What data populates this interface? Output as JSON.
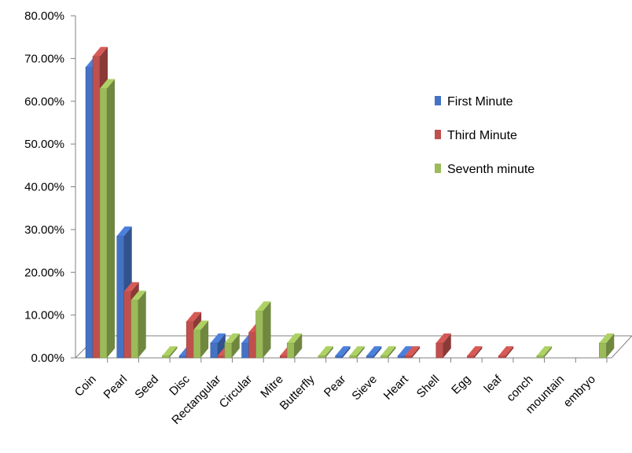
{
  "chart_data": {
    "type": "bar",
    "title": "",
    "xlabel": "",
    "ylabel": "",
    "ylim": [
      0,
      80
    ],
    "yticks": [
      "0.00%",
      "10.00%",
      "20.00%",
      "30.00%",
      "40.00%",
      "50.00%",
      "60.00%",
      "70.00%",
      "80.00%"
    ],
    "grid": false,
    "legend_position": "right",
    "categories": [
      "Coin",
      "Pearl",
      "Seed",
      "Disc",
      "Rectangular",
      "Circular",
      "Mitre",
      "Butterfly",
      "Pear",
      "Sieve",
      "Heart",
      "Shell",
      "Egg",
      "leaf",
      "conch",
      "mountain",
      "embryo"
    ],
    "series": [
      {
        "name": "First Minute",
        "color": "#4472C4",
        "values": [
          68.0,
          28.5,
          0,
          0.5,
          3.5,
          3.5,
          0,
          0,
          0.5,
          0.5,
          0.5,
          0,
          0,
          0,
          0,
          0,
          0
        ]
      },
      {
        "name": "Third Minute",
        "color": "#C0504D",
        "values": [
          70.5,
          15.5,
          0,
          8.5,
          0.5,
          6.0,
          0.5,
          0,
          0,
          0,
          0.5,
          3.5,
          0.5,
          0.5,
          0,
          0,
          0
        ]
      },
      {
        "name": "Seventh minute",
        "color": "#9BBB59",
        "values": [
          63.0,
          13.5,
          0.5,
          6.5,
          3.5,
          11.0,
          3.5,
          0.5,
          0.5,
          0.5,
          0,
          0,
          0,
          0,
          0.5,
          0,
          3.5
        ]
      }
    ]
  }
}
